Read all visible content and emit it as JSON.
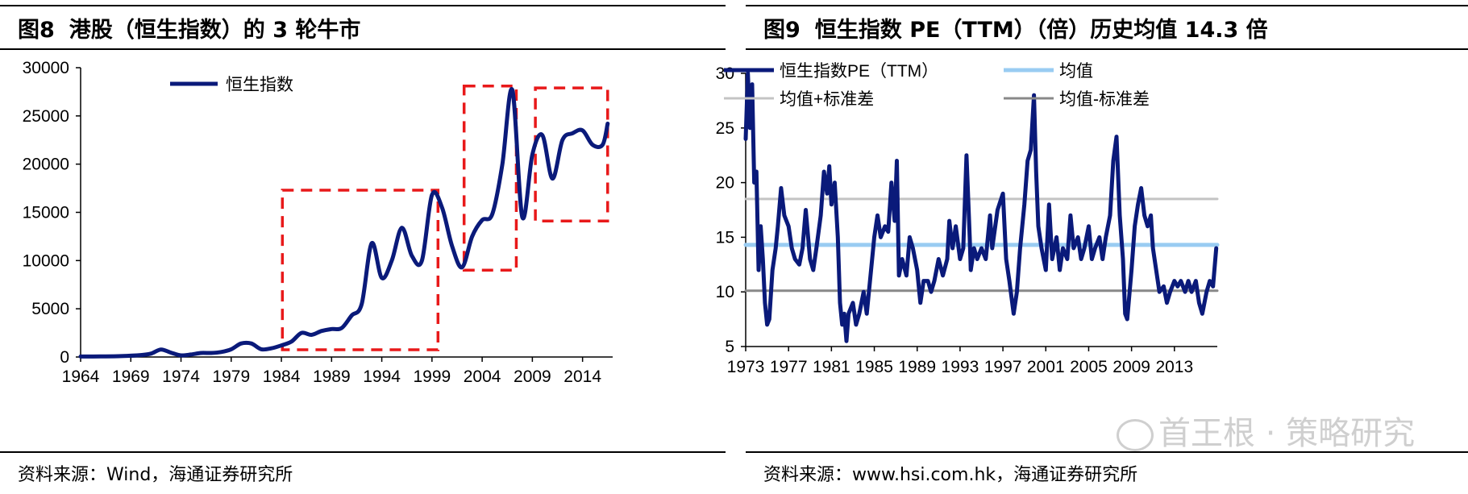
{
  "left": {
    "fig_no": "图8",
    "title": "港股（恒生指数）的 3 轮牛市",
    "source": "资料来源：Wind，海通证券研究所",
    "chart_data": {
      "type": "line",
      "series": [
        {
          "name": "恒生指数",
          "color": "#0a1a7a",
          "points": [
            [
              1964,
              50
            ],
            [
              1966,
              60
            ],
            [
              1968,
              90
            ],
            [
              1970,
              200
            ],
            [
              1971,
              350
            ],
            [
              1972,
              780
            ],
            [
              1973,
              450
            ],
            [
              1974,
              170
            ],
            [
              1975,
              260
            ],
            [
              1976,
              420
            ],
            [
              1977,
              420
            ],
            [
              1978,
              520
            ],
            [
              1979,
              800
            ],
            [
              1980,
              1400
            ],
            [
              1981,
              1400
            ],
            [
              1982,
              800
            ],
            [
              1983,
              900
            ],
            [
              1984,
              1200
            ],
            [
              1985,
              1600
            ],
            [
              1986,
              2500
            ],
            [
              1987,
              2300
            ],
            [
              1988,
              2700
            ],
            [
              1989,
              2900
            ],
            [
              1990,
              3000
            ],
            [
              1991,
              4300
            ],
            [
              1992,
              5500
            ],
            [
              1993,
              11800
            ],
            [
              1994,
              8200
            ],
            [
              1995,
              10000
            ],
            [
              1996,
              13400
            ],
            [
              1997,
              10500
            ],
            [
              1998,
              10000
            ],
            [
              1999,
              16800
            ],
            [
              2000,
              15500
            ],
            [
              2001,
              11500
            ],
            [
              2002,
              9300
            ],
            [
              2003,
              12500
            ],
            [
              2004,
              14200
            ],
            [
              2005,
              14800
            ],
            [
              2006,
              19900
            ],
            [
              2007,
              27700
            ],
            [
              2008,
              14500
            ],
            [
              2009,
              21000
            ],
            [
              2010,
              23000
            ],
            [
              2011,
              18500
            ],
            [
              2012,
              22500
            ],
            [
              2013,
              23200
            ],
            [
              2014,
              23500
            ],
            [
              2015,
              22000
            ],
            [
              2016,
              22000
            ],
            [
              2016.5,
              24200
            ]
          ]
        }
      ],
      "x_ticks": [
        "1964",
        "1969",
        "1974",
        "1979",
        "1984",
        "1989",
        "1994",
        "1999",
        "2004",
        "2009",
        "2014"
      ],
      "y_ticks": [
        "0",
        "5000",
        "10000",
        "15000",
        "20000",
        "25000",
        "30000"
      ],
      "xlim": [
        1964,
        2017
      ],
      "ylim": [
        0,
        30000
      ],
      "legend": [
        "恒生指数"
      ],
      "annotations": [
        {
          "type": "dashed-box",
          "x": [
            1984.1,
            1999.6
          ],
          "y": [
            750,
            17300
          ],
          "color": "#e8191a"
        },
        {
          "type": "dashed-box",
          "x": [
            2002.2,
            2007.4
          ],
          "y": [
            9000,
            28100
          ],
          "color": "#e8191a"
        },
        {
          "type": "dashed-box",
          "x": [
            2009.3,
            2016.5
          ],
          "y": [
            14100,
            27900
          ],
          "color": "#e8191a"
        }
      ]
    }
  },
  "right": {
    "fig_no": "图9",
    "title": "恒生指数 PE（TTM）（倍）历史均值 14.3 倍",
    "source": "资料来源：www.hsi.com.hk，海通证券研究所",
    "chart_data": {
      "type": "line",
      "x_ticks": [
        "1973",
        "1977",
        "1981",
        "1985",
        "1989",
        "1993",
        "1997",
        "2001",
        "2005",
        "2009",
        "2013"
      ],
      "y_ticks": [
        "5",
        "10",
        "15",
        "20",
        "25",
        "30"
      ],
      "xlim": [
        1973,
        2017
      ],
      "ylim": [
        5,
        30
      ],
      "legend": [
        "恒生指数PE（TTM）",
        "均值",
        "均值+标准差",
        "均值-标准差"
      ],
      "series": [
        {
          "name": "恒生指数PE（TTM）",
          "color": "#0a1a7a",
          "points": [
            [
              1973,
              24
            ],
            [
              1973.2,
              30
            ],
            [
              1973.4,
              25
            ],
            [
              1973.6,
              29
            ],
            [
              1973.8,
              20
            ],
            [
              1974,
              21
            ],
            [
              1974.2,
              12
            ],
            [
              1974.4,
              16
            ],
            [
              1974.6,
              13
            ],
            [
              1974.8,
              9
            ],
            [
              1975,
              7
            ],
            [
              1975.2,
              7.5
            ],
            [
              1975.5,
              12
            ],
            [
              1975.8,
              14
            ],
            [
              1976,
              16
            ],
            [
              1976.3,
              19.5
            ],
            [
              1976.6,
              17
            ],
            [
              1977,
              16
            ],
            [
              1977.3,
              14
            ],
            [
              1977.6,
              13
            ],
            [
              1978,
              12.5
            ],
            [
              1978.3,
              14
            ],
            [
              1978.6,
              17.5
            ],
            [
              1979,
              13
            ],
            [
              1979.3,
              12
            ],
            [
              1979.6,
              14
            ],
            [
              1980,
              17
            ],
            [
              1980.3,
              21
            ],
            [
              1980.6,
              19
            ],
            [
              1980.8,
              21.5
            ],
            [
              1981,
              18
            ],
            [
              1981.3,
              20
            ],
            [
              1981.6,
              15
            ],
            [
              1981.8,
              9
            ],
            [
              1982,
              7
            ],
            [
              1982.2,
              8
            ],
            [
              1982.4,
              5.5
            ],
            [
              1982.6,
              8
            ],
            [
              1983,
              9
            ],
            [
              1983.3,
              7
            ],
            [
              1983.6,
              8
            ],
            [
              1984,
              10
            ],
            [
              1984.3,
              8
            ],
            [
              1984.6,
              11
            ],
            [
              1985,
              15
            ],
            [
              1985.3,
              17
            ],
            [
              1985.6,
              15
            ],
            [
              1986,
              16
            ],
            [
              1986.3,
              15.5
            ],
            [
              1986.6,
              20
            ],
            [
              1986.9,
              16.5
            ],
            [
              1987.1,
              22
            ],
            [
              1987.3,
              11.5
            ],
            [
              1987.6,
              13
            ],
            [
              1988,
              11.5
            ],
            [
              1988.3,
              15
            ],
            [
              1988.6,
              14
            ],
            [
              1989,
              12
            ],
            [
              1989.3,
              9
            ],
            [
              1989.6,
              11
            ],
            [
              1990,
              11
            ],
            [
              1990.3,
              10
            ],
            [
              1990.6,
              11
            ],
            [
              1991,
              13
            ],
            [
              1991.4,
              11.5
            ],
            [
              1991.8,
              13
            ],
            [
              1992,
              16.5
            ],
            [
              1992.3,
              14
            ],
            [
              1992.6,
              16
            ],
            [
              1993,
              13
            ],
            [
              1993.3,
              14
            ],
            [
              1993.6,
              22.5
            ],
            [
              1993.9,
              15
            ],
            [
              1994,
              12
            ],
            [
              1994.3,
              14
            ],
            [
              1994.6,
              13
            ],
            [
              1995,
              14
            ],
            [
              1995.4,
              13
            ],
            [
              1995.8,
              17
            ],
            [
              1996,
              14
            ],
            [
              1996.5,
              17.5
            ],
            [
              1997,
              19
            ],
            [
              1997.3,
              13
            ],
            [
              1997.6,
              11
            ],
            [
              1998,
              8
            ],
            [
              1998.3,
              10
            ],
            [
              1998.6,
              14
            ],
            [
              1999,
              18
            ],
            [
              1999.3,
              22
            ],
            [
              1999.6,
              23
            ],
            [
              1999.9,
              28
            ],
            [
              2000.1,
              21
            ],
            [
              2000.3,
              16
            ],
            [
              2000.6,
              14
            ],
            [
              2001,
              12
            ],
            [
              2001.3,
              18
            ],
            [
              2001.6,
              13
            ],
            [
              2002,
              15
            ],
            [
              2002.3,
              12
            ],
            [
              2002.6,
              14
            ],
            [
              2003,
              13
            ],
            [
              2003.3,
              17
            ],
            [
              2003.6,
              14
            ],
            [
              2004,
              15
            ],
            [
              2004.3,
              13
            ],
            [
              2004.6,
              14
            ],
            [
              2005,
              16
            ],
            [
              2005.3,
              13
            ],
            [
              2005.6,
              14
            ],
            [
              2006,
              15
            ],
            [
              2006.3,
              13
            ],
            [
              2006.6,
              15
            ],
            [
              2007,
              17
            ],
            [
              2007.3,
              22
            ],
            [
              2007.6,
              24.2
            ],
            [
              2007.9,
              17
            ],
            [
              2008.2,
              13
            ],
            [
              2008.4,
              8
            ],
            [
              2008.6,
              7.5
            ],
            [
              2009,
              12
            ],
            [
              2009.3,
              16
            ],
            [
              2009.6,
              18
            ],
            [
              2009.9,
              19.5
            ],
            [
              2010.2,
              17
            ],
            [
              2010.5,
              16
            ],
            [
              2010.8,
              17
            ],
            [
              2011,
              14
            ],
            [
              2011.3,
              12
            ],
            [
              2011.6,
              10
            ],
            [
              2012,
              10.5
            ],
            [
              2012.3,
              9
            ],
            [
              2012.6,
              10
            ],
            [
              2013,
              11
            ],
            [
              2013.3,
              10.5
            ],
            [
              2013.6,
              11
            ],
            [
              2014,
              10
            ],
            [
              2014.3,
              11
            ],
            [
              2014.6,
              10
            ],
            [
              2015,
              11
            ],
            [
              2015.3,
              9
            ],
            [
              2015.6,
              8
            ],
            [
              2016,
              10
            ],
            [
              2016.3,
              11
            ],
            [
              2016.6,
              10.5
            ],
            [
              2016.9,
              14
            ]
          ]
        },
        {
          "name": "均值",
          "color": "#99ccf2",
          "points": [
            [
              1973,
              14.3
            ],
            [
              2017,
              14.3
            ]
          ]
        },
        {
          "name": "均值+标准差",
          "color": "#c4c4c4",
          "points": [
            [
              1973,
              18.5
            ],
            [
              2017,
              18.5
            ]
          ]
        },
        {
          "name": "均值-标准差",
          "color": "#888888",
          "points": [
            [
              1973,
              10.1
            ],
            [
              2017,
              10.1
            ]
          ]
        }
      ]
    }
  },
  "watermark": "首王根 · 策略研究"
}
